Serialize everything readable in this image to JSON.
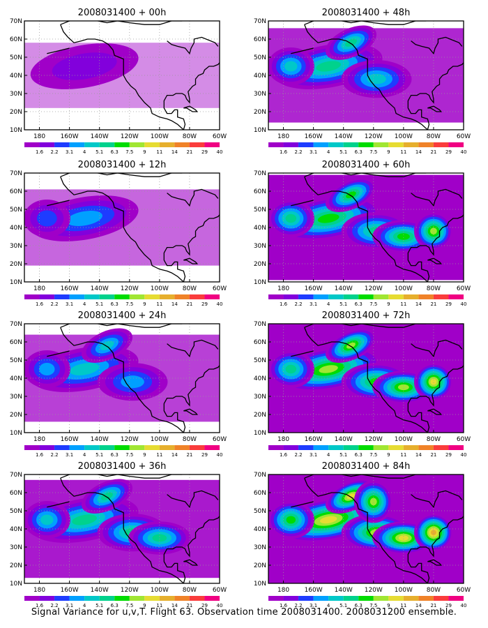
{
  "figure": {
    "caption": "Signal Variance for u,v,T. Flight 63. Observation time 2008031400. 2008031200 ensemble."
  },
  "chart_data": [
    {
      "type": "heatmap",
      "title": "2008031400 + 00h",
      "forecast_hour": 0,
      "intensity": 0.15
    },
    {
      "type": "heatmap",
      "title": "2008031400 + 12h",
      "forecast_hour": 12,
      "intensity": 0.3
    },
    {
      "type": "heatmap",
      "title": "2008031400 + 24h",
      "forecast_hour": 24,
      "intensity": 0.45
    },
    {
      "type": "heatmap",
      "title": "2008031400 + 36h",
      "forecast_hour": 36,
      "intensity": 0.6
    },
    {
      "type": "heatmap",
      "title": "2008031400 + 48h",
      "forecast_hour": 48,
      "intensity": 0.55
    },
    {
      "type": "heatmap",
      "title": "2008031400 + 60h",
      "forecast_hour": 60,
      "intensity": 0.7
    },
    {
      "type": "heatmap",
      "title": "2008031400 + 72h",
      "forecast_hour": 72,
      "intensity": 0.8
    },
    {
      "type": "heatmap",
      "title": "2008031400 + 84h",
      "forecast_hour": 84,
      "intensity": 0.92
    }
  ],
  "axes": {
    "x_ticks": [
      "180",
      "160W",
      "140W",
      "120W",
      "100W",
      "80W",
      "60W"
    ],
    "x_range": [
      -190,
      -60
    ],
    "y_ticks": [
      "10N",
      "20N",
      "30N",
      "40N",
      "50N",
      "60N",
      "70N"
    ],
    "y_range": [
      10,
      70
    ],
    "grid": true
  },
  "colorbar": {
    "labels": [
      "1.6",
      "2.2",
      "3.1",
      "4",
      "5.1",
      "6.3",
      "7.5",
      "9",
      "11",
      "14",
      "21",
      "29",
      "40"
    ],
    "colors": [
      "#a000c8",
      "#8200dc",
      "#1e3cff",
      "#00a0ff",
      "#00c8c8",
      "#00d28c",
      "#00dc00",
      "#a0e632",
      "#e6dc32",
      "#e6af2d",
      "#f08228",
      "#fa3c3c",
      "#f00082"
    ]
  }
}
